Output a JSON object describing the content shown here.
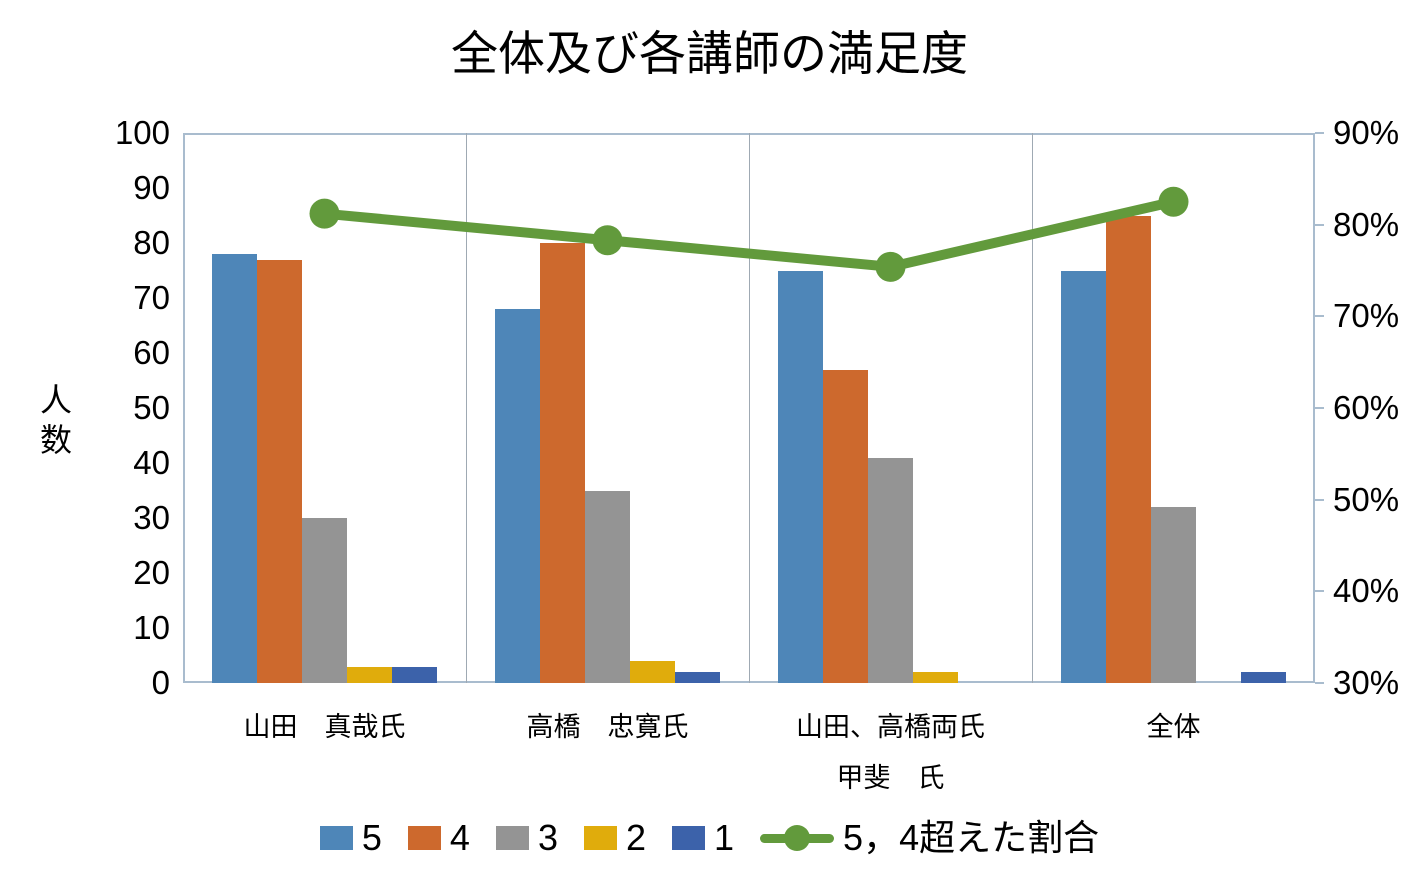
{
  "title": "全体及び各講師の満足度",
  "chart_data": {
    "type": "combo (clustered bar + line)",
    "title": "全体及び各講師の満足度",
    "categories": [
      "山田　真哉氏",
      "高橋　忠寛氏",
      "山田、高橋両氏",
      "全体"
    ],
    "category_sublabels": [
      "",
      "",
      "甲斐　氏",
      ""
    ],
    "bar_series": [
      {
        "name": "5",
        "color": "#4E86B8",
        "values": [
          78,
          68,
          75,
          75
        ]
      },
      {
        "name": "4",
        "color": "#CD692D",
        "values": [
          77,
          80,
          57,
          85
        ]
      },
      {
        "name": "3",
        "color": "#949494",
        "values": [
          30,
          35,
          41,
          32
        ]
      },
      {
        "name": "2",
        "color": "#E0AC0C",
        "values": [
          3,
          4,
          2,
          0
        ]
      },
      {
        "name": "1",
        "color": "#3C62AA",
        "values": [
          3,
          2,
          0,
          2
        ]
      }
    ],
    "line_series": {
      "name": "5，4超えた割合",
      "color": "#629A3C",
      "axis": "right",
      "values_percent": [
        81.2,
        78.3,
        75.4,
        82.5
      ]
    },
    "left_axis": {
      "title": "人数",
      "min": 0,
      "max": 100,
      "step": 10,
      "tick_labels": [
        "0",
        "10",
        "20",
        "30",
        "40",
        "50",
        "60",
        "70",
        "80",
        "90",
        "100"
      ]
    },
    "right_axis": {
      "min": 30,
      "max": 90,
      "step": 10,
      "tick_labels": [
        "30%",
        "40%",
        "50%",
        "60%",
        "70%",
        "80%",
        "90%"
      ]
    },
    "grid": "vertical category separators only, no horizontal gridlines",
    "legend_position": "bottom"
  },
  "colors": {
    "plot_border": "#A9BCCE",
    "separator": "#9FA9B3",
    "text": "#000000"
  }
}
